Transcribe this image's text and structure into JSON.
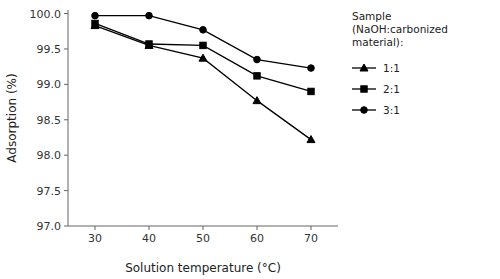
{
  "chart_data": {
    "type": "line",
    "xlabel": "Solution temperature (°C)",
    "ylabel": "Adsorption (%)",
    "legend_title": "Sample\n(NaOH:carbonized\nmaterial):",
    "legend": "right",
    "grid": false,
    "x": [
      30,
      40,
      50,
      60,
      70
    ],
    "xlim": [
      25,
      75
    ],
    "xticks": [
      30,
      40,
      50,
      60,
      70
    ],
    "ylim": [
      97.0,
      100.05
    ],
    "yticks": [
      {
        "value": 97.0,
        "label": "97.0"
      },
      97.5,
      {
        "value": 98.0,
        "label": "98.0"
      },
      98.5,
      {
        "value": 99.0,
        "label": "99.0"
      },
      99.5,
      {
        "value": 100.0,
        "label": "100.0"
      }
    ],
    "series": [
      {
        "name": "1:1",
        "color": "#000000",
        "marker": "triangle",
        "values": [
          99.83,
          99.55,
          99.37,
          98.77,
          98.22
        ]
      },
      {
        "name": "2:1",
        "color": "#000000",
        "marker": "square",
        "values": [
          99.86,
          99.57,
          99.55,
          99.12,
          98.9
        ]
      },
      {
        "name": "3:1",
        "color": "#000000",
        "marker": "circle",
        "values": [
          99.97,
          99.97,
          99.77,
          99.35,
          99.23
        ]
      }
    ]
  }
}
